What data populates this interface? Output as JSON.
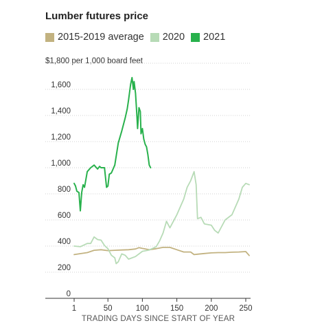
{
  "chart_data": {
    "type": "line",
    "title": "Lumber futures price",
    "unit_label": "$1,800 per 1,000 board feet",
    "xlabel": "TRADING DAYS SINCE START OF YEAR",
    "ylabel": "",
    "xlim": [
      1,
      255
    ],
    "ylim": [
      0,
      1800
    ],
    "x_ticks": [
      1,
      50,
      100,
      150,
      200,
      250
    ],
    "y_ticks": [
      0,
      200,
      400,
      600,
      800,
      1000,
      1200,
      1400,
      1600
    ],
    "y_tick_labels": [
      "0",
      "200",
      "400",
      "600",
      "800",
      "1,000",
      "1,200",
      "1,400",
      "1,600"
    ],
    "grid": true,
    "legend_position": "top-left",
    "series": [
      {
        "name": "2015-2019 average",
        "color": "#c2b280",
        "x": [
          1,
          10,
          20,
          30,
          40,
          50,
          60,
          70,
          80,
          90,
          95,
          100,
          110,
          120,
          130,
          140,
          150,
          160,
          170,
          175,
          180,
          190,
          200,
          210,
          220,
          230,
          240,
          250,
          255
        ],
        "y": [
          335,
          342,
          350,
          368,
          372,
          365,
          368,
          370,
          372,
          378,
          388,
          382,
          372,
          380,
          390,
          390,
          372,
          355,
          355,
          335,
          338,
          343,
          348,
          350,
          350,
          353,
          355,
          358,
          328
        ]
      },
      {
        "name": "2020",
        "color": "#b7dbb6",
        "x": [
          1,
          10,
          20,
          25,
          30,
          35,
          40,
          45,
          50,
          55,
          60,
          62,
          65,
          70,
          75,
          80,
          90,
          100,
          110,
          120,
          125,
          130,
          135,
          140,
          150,
          160,
          165,
          170,
          175,
          178,
          180,
          185,
          190,
          200,
          205,
          210,
          220,
          230,
          240,
          245,
          250,
          255
        ],
        "y": [
          400,
          395,
          420,
          420,
          470,
          450,
          445,
          405,
          380,
          330,
          310,
          265,
          280,
          340,
          330,
          300,
          320,
          360,
          370,
          395,
          440,
          500,
          590,
          540,
          640,
          760,
          850,
          900,
          970,
          870,
          610,
          620,
          570,
          560,
          520,
          500,
          600,
          640,
          760,
          850,
          880,
          870
        ]
      },
      {
        "name": "2021",
        "color": "#28b14c",
        "x": [
          1,
          3,
          5,
          8,
          10,
          12,
          14,
          16,
          20,
          25,
          30,
          35,
          38,
          40,
          45,
          48,
          50,
          52,
          55,
          60,
          65,
          70,
          75,
          78,
          80,
          83,
          85,
          87,
          88,
          90,
          92,
          93,
          95,
          97,
          98,
          100,
          102,
          104,
          106,
          108,
          110,
          112
        ],
        "y": [
          880,
          860,
          820,
          810,
          670,
          810,
          870,
          850,
          970,
          1000,
          1020,
          990,
          1010,
          1000,
          1000,
          850,
          860,
          950,
          960,
          1020,
          1190,
          1280,
          1380,
          1450,
          1520,
          1640,
          1690,
          1600,
          1660,
          1570,
          1400,
          1300,
          1460,
          1430,
          1260,
          1300,
          1220,
          1180,
          1160,
          1100,
          1020,
          1000
        ]
      }
    ]
  }
}
